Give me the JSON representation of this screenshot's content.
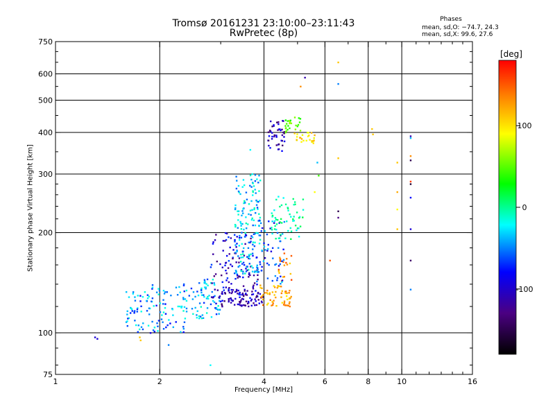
{
  "header": {
    "title": "Tromsø 20161231 23:10:00–23:11:43",
    "subtitle": "RwPretec (8p)"
  },
  "phases_box": {
    "title": "Phases",
    "o_line": "mean, sd,O: −74.7, 24.3",
    "x_line": "mean, sd,X:  99.6, 27.6"
  },
  "chart_data": {
    "type": "scatter",
    "title": "Tromsø 20161231 23:10:00–23:11:43",
    "subtitle": "RwPretec (8p)",
    "xlabel": "Frequency [MHz]",
    "ylabel": "Stationary phase Virtual Height [km]",
    "x_scale": "log",
    "y_scale": "log",
    "xlim": [
      1,
      16
    ],
    "ylim": [
      75,
      750
    ],
    "x_ticks": [
      1,
      2,
      4,
      6,
      8,
      10,
      16
    ],
    "y_ticks": [
      75,
      100,
      200,
      300,
      400,
      500,
      600,
      750
    ],
    "x_gridlines": [
      2,
      4,
      6,
      8,
      10
    ],
    "y_gridlines": [
      100,
      200,
      300,
      400,
      500,
      600
    ],
    "grid": true,
    "colorbar": {
      "label": "[deg]",
      "range": [
        -180,
        180
      ],
      "ticks": [
        100,
        0,
        -100
      ],
      "colors": [
        "#000000",
        "#4b0082",
        "#0000ff",
        "#00ffff",
        "#00ff00",
        "#ffff00",
        "#ff8000",
        "#ff0000"
      ]
    },
    "clusters": [
      {
        "name": "low-freq cyan band",
        "x_range": [
          1.6,
          2.4
        ],
        "y_range": [
          100,
          140
        ],
        "phase_deg": -75,
        "count": 110
      },
      {
        "name": "mid cyan band",
        "x_range": [
          2.3,
          3.0
        ],
        "y_range": [
          110,
          145
        ],
        "phase_deg": -70,
        "count": 80
      },
      {
        "name": "blue ramp",
        "x_range": [
          2.8,
          3.9
        ],
        "y_range": [
          120,
          200
        ],
        "phase_deg": -110,
        "count": 140
      },
      {
        "name": "cyan tower",
        "x_range": [
          3.3,
          3.9
        ],
        "y_range": [
          150,
          300
        ],
        "phase_deg": -65,
        "count": 150
      },
      {
        "name": "blue base",
        "x_range": [
          3.0,
          4.0
        ],
        "y_range": [
          120,
          135
        ],
        "phase_deg": -120,
        "count": 70
      },
      {
        "name": "orange base",
        "x_range": [
          3.9,
          4.8
        ],
        "y_range": [
          120,
          140
        ],
        "phase_deg": 120,
        "count": 60
      },
      {
        "name": "orange column",
        "x_range": [
          4.4,
          4.8
        ],
        "y_range": [
          140,
          175
        ],
        "phase_deg": 130,
        "count": 20
      },
      {
        "name": "mixed column",
        "x_range": [
          3.8,
          4.6
        ],
        "y_range": [
          140,
          220
        ],
        "phase_deg": -90,
        "count": 60
      },
      {
        "name": "upper mixed",
        "x_range": [
          4.2,
          5.2
        ],
        "y_range": [
          190,
          260
        ],
        "phase_deg": -40,
        "count": 60
      },
      {
        "name": "blue F cluster",
        "x_range": [
          4.1,
          4.6
        ],
        "y_range": [
          350,
          440
        ],
        "phase_deg": -120,
        "count": 45
      },
      {
        "name": "green F cluster",
        "x_range": [
          4.6,
          5.1
        ],
        "y_range": [
          400,
          450
        ],
        "phase_deg": 30,
        "count": 25
      },
      {
        "name": "yellow F cluster",
        "x_range": [
          4.9,
          5.6
        ],
        "y_range": [
          370,
          400
        ],
        "phase_deg": 100,
        "count": 25
      }
    ],
    "points": [
      {
        "x": 1.3,
        "y": 97,
        "phase": -110
      },
      {
        "x": 1.32,
        "y": 96,
        "phase": -110
      },
      {
        "x": 1.75,
        "y": 97,
        "phase": 110
      },
      {
        "x": 1.76,
        "y": 95,
        "phase": 110
      },
      {
        "x": 1.88,
        "y": 100,
        "phase": -110
      },
      {
        "x": 2.12,
        "y": 92,
        "phase": -80
      },
      {
        "x": 2.8,
        "y": 80,
        "phase": -60
      },
      {
        "x": 3.65,
        "y": 355,
        "phase": -60
      },
      {
        "x": 3.7,
        "y": 300,
        "phase": -60
      },
      {
        "x": 5.25,
        "y": 585,
        "phase": -120
      },
      {
        "x": 5.1,
        "y": 550,
        "phase": 130
      },
      {
        "x": 6.55,
        "y": 650,
        "phase": 110
      },
      {
        "x": 6.55,
        "y": 560,
        "phase": -80
      },
      {
        "x": 6.55,
        "y": 335,
        "phase": 110
      },
      {
        "x": 6.55,
        "y": 232,
        "phase": -150
      },
      {
        "x": 6.55,
        "y": 222,
        "phase": -130
      },
      {
        "x": 5.7,
        "y": 325,
        "phase": -70
      },
      {
        "x": 5.75,
        "y": 297,
        "phase": 20
      },
      {
        "x": 5.6,
        "y": 265,
        "phase": 90
      },
      {
        "x": 6.2,
        "y": 165,
        "phase": 150
      },
      {
        "x": 8.2,
        "y": 410,
        "phase": 110
      },
      {
        "x": 8.25,
        "y": 395,
        "phase": 110
      },
      {
        "x": 9.7,
        "y": 325,
        "phase": 110
      },
      {
        "x": 9.7,
        "y": 265,
        "phase": 120
      },
      {
        "x": 9.7,
        "y": 235,
        "phase": 90
      },
      {
        "x": 9.7,
        "y": 205,
        "phase": 110
      },
      {
        "x": 10.6,
        "y": 390,
        "phase": -120
      },
      {
        "x": 10.6,
        "y": 385,
        "phase": -70
      },
      {
        "x": 10.6,
        "y": 340,
        "phase": 130
      },
      {
        "x": 10.6,
        "y": 330,
        "phase": -150
      },
      {
        "x": 10.6,
        "y": 285,
        "phase": 160
      },
      {
        "x": 10.6,
        "y": 280,
        "phase": -160
      },
      {
        "x": 10.6,
        "y": 255,
        "phase": -100
      },
      {
        "x": 10.6,
        "y": 205,
        "phase": -110
      },
      {
        "x": 10.6,
        "y": 165,
        "phase": -140
      },
      {
        "x": 10.6,
        "y": 135,
        "phase": -80
      }
    ]
  }
}
